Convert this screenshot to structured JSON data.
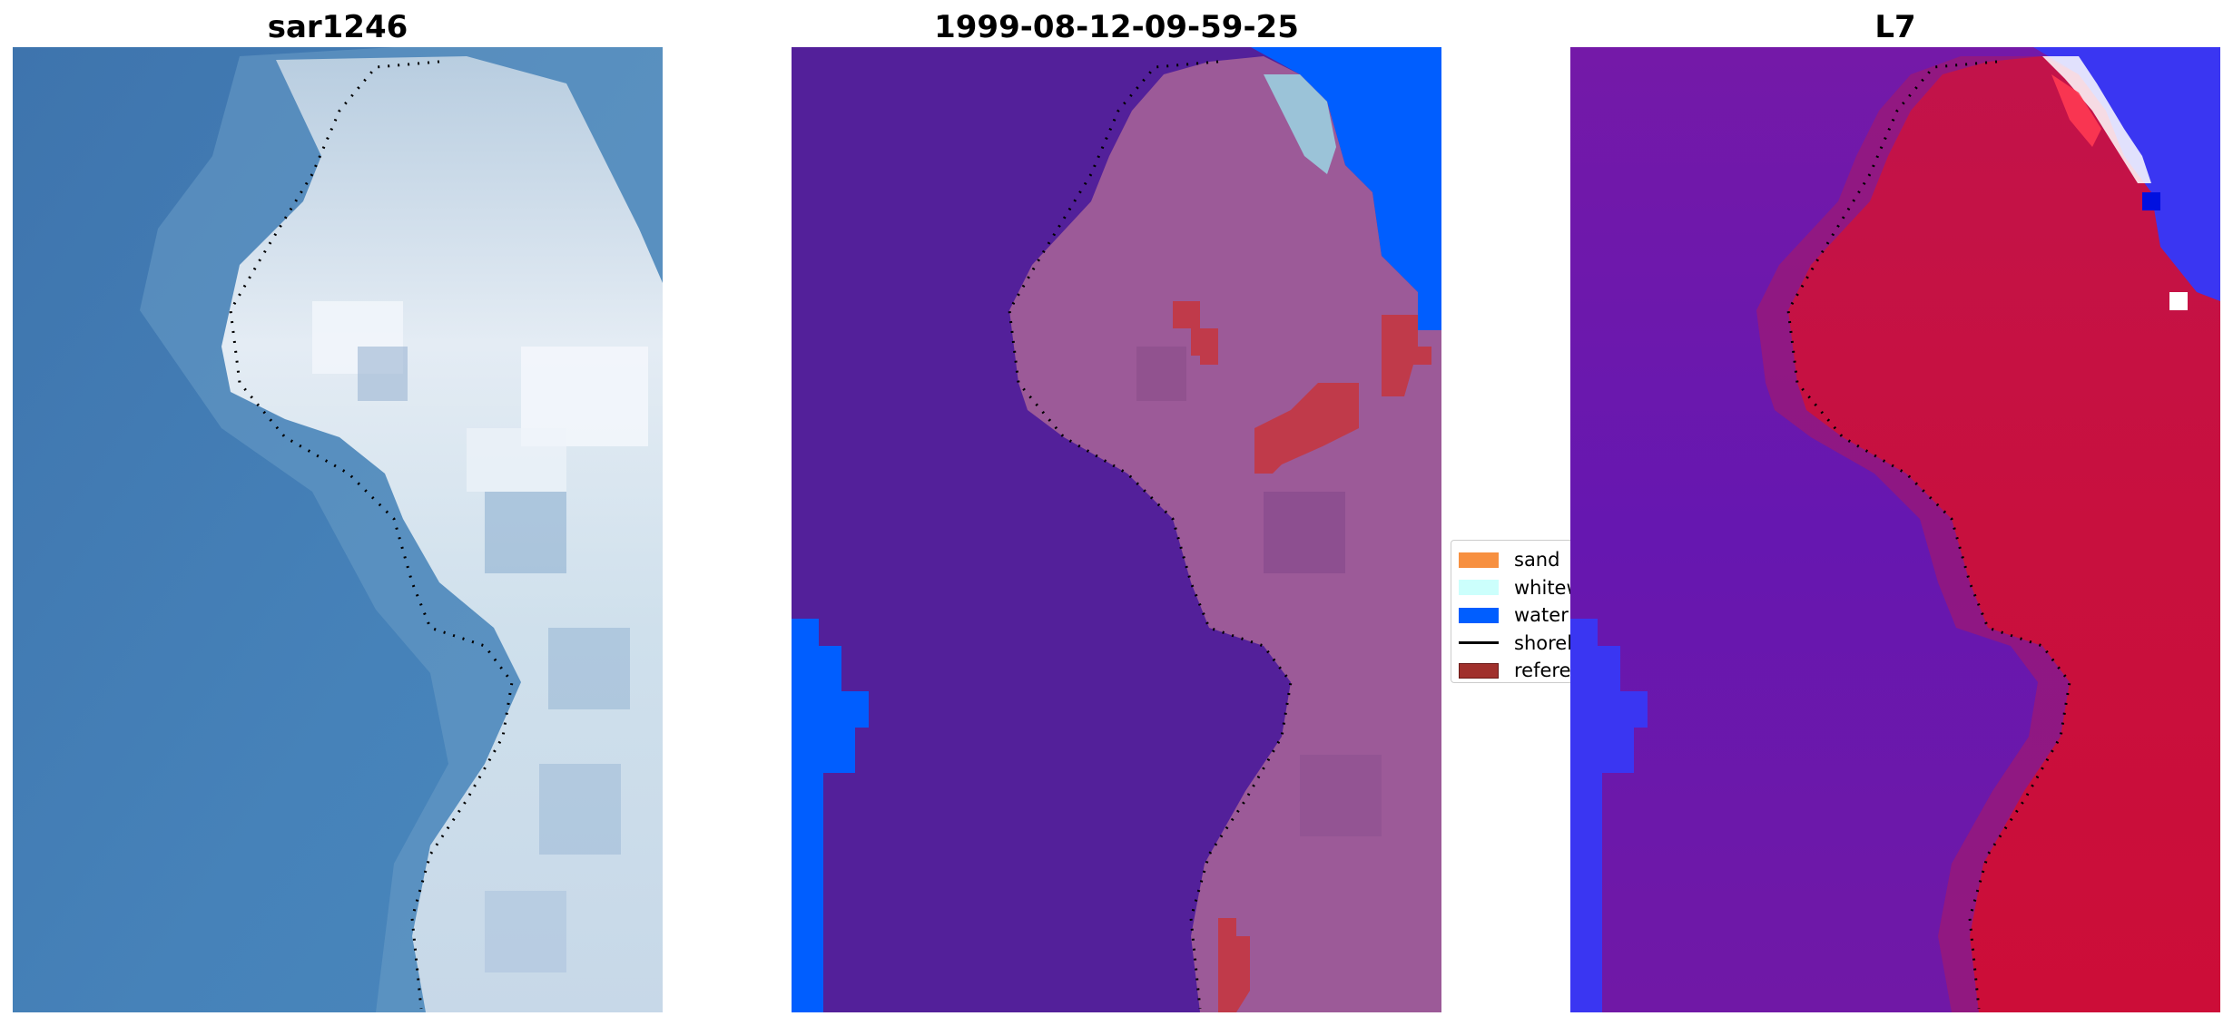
{
  "panels": [
    {
      "title": "sar1246"
    },
    {
      "title": "1999-08-12-09-59-25"
    },
    {
      "title": "L7"
    }
  ],
  "legend": {
    "items": [
      {
        "label": "sand",
        "color": "#f79040",
        "kind": "patch"
      },
      {
        "label": "whitewater",
        "color": "#ccfffc",
        "kind": "patch"
      },
      {
        "label": "water",
        "color": "#005eff",
        "kind": "patch"
      },
      {
        "label": "shoreline",
        "color": "#000000",
        "kind": "line"
      },
      {
        "label": "reference shoreline",
        "color": "#a0302c",
        "kind": "patch"
      }
    ]
  },
  "colors": {
    "ocean_rgb": "#3f7ab5",
    "land_rgb": "#dfe8f1",
    "class_background": "#53209a",
    "class_land": "#9c5a98",
    "class_water": "#005eff",
    "class_whitewater": "#9bc3d8",
    "class_reference": "#c03a4a",
    "ndwi_water": "#6d18ad",
    "ndwi_land": "#c80f3e",
    "ndwi_blue": "#3a36f2"
  }
}
